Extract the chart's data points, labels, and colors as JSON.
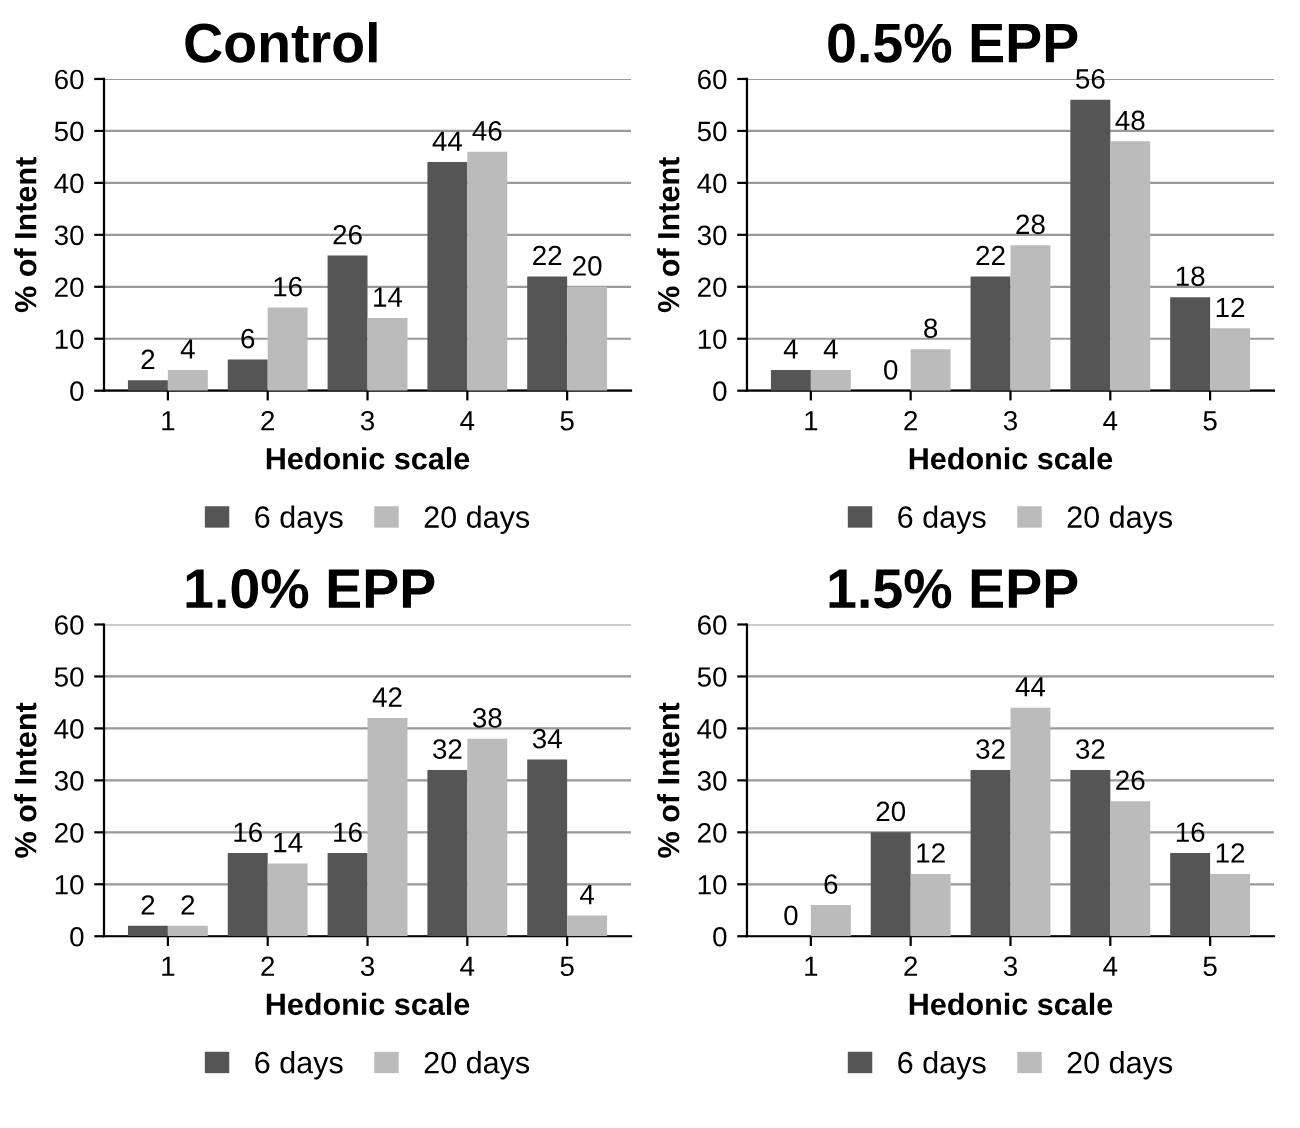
{
  "chart_data": [
    {
      "type": "bar",
      "title": "Control",
      "xlabel": "Hedonic scale",
      "ylabel": "% of Intent",
      "categories": [
        "1",
        "2",
        "3",
        "4",
        "5"
      ],
      "ylim": [
        0,
        60
      ],
      "yticks": [
        0,
        10,
        20,
        30,
        40,
        50,
        60
      ],
      "grid": "y",
      "legend": "bottom",
      "data_labels": true,
      "series": [
        {
          "name": "6 days",
          "color": "#555555",
          "values": [
            2,
            6,
            26,
            44,
            22
          ]
        },
        {
          "name": "20 days",
          "color": "#bbbbbb",
          "values": [
            4,
            16,
            14,
            46,
            20
          ]
        }
      ]
    },
    {
      "type": "bar",
      "title": "0.5% EPP",
      "xlabel": "Hedonic scale",
      "ylabel": "% of Intent",
      "categories": [
        "1",
        "2",
        "3",
        "4",
        "5"
      ],
      "ylim": [
        0,
        60
      ],
      "yticks": [
        0,
        10,
        20,
        30,
        40,
        50,
        60
      ],
      "grid": "y",
      "legend": "bottom",
      "data_labels": true,
      "series": [
        {
          "name": "6 days",
          "color": "#555555",
          "values": [
            4,
            0,
            22,
            56,
            18
          ]
        },
        {
          "name": "20 days",
          "color": "#bbbbbb",
          "values": [
            4,
            8,
            28,
            48,
            12
          ]
        }
      ]
    },
    {
      "type": "bar",
      "title": "1.0% EPP",
      "xlabel": "Hedonic scale",
      "ylabel": "% of Intent",
      "categories": [
        "1",
        "2",
        "3",
        "4",
        "5"
      ],
      "ylim": [
        0,
        60
      ],
      "yticks": [
        0,
        10,
        20,
        30,
        40,
        50,
        60
      ],
      "grid": "y",
      "legend": "bottom",
      "data_labels": true,
      "series": [
        {
          "name": "6 days",
          "color": "#555555",
          "values": [
            2,
            16,
            16,
            32,
            34
          ]
        },
        {
          "name": "20 days",
          "color": "#bbbbbb",
          "values": [
            2,
            14,
            42,
            38,
            4
          ]
        }
      ]
    },
    {
      "type": "bar",
      "title": "1.5% EPP",
      "xlabel": "Hedonic scale",
      "ylabel": "% of Intent",
      "categories": [
        "1",
        "2",
        "3",
        "4",
        "5"
      ],
      "ylim": [
        0,
        60
      ],
      "yticks": [
        0,
        10,
        20,
        30,
        40,
        50,
        60
      ],
      "grid": "y",
      "legend": "bottom",
      "data_labels": true,
      "series": [
        {
          "name": "6 days",
          "color": "#555555",
          "values": [
            0,
            20,
            32,
            32,
            16
          ]
        },
        {
          "name": "20 days",
          "color": "#bbbbbb",
          "values": [
            6,
            12,
            44,
            26,
            12
          ]
        }
      ]
    }
  ]
}
